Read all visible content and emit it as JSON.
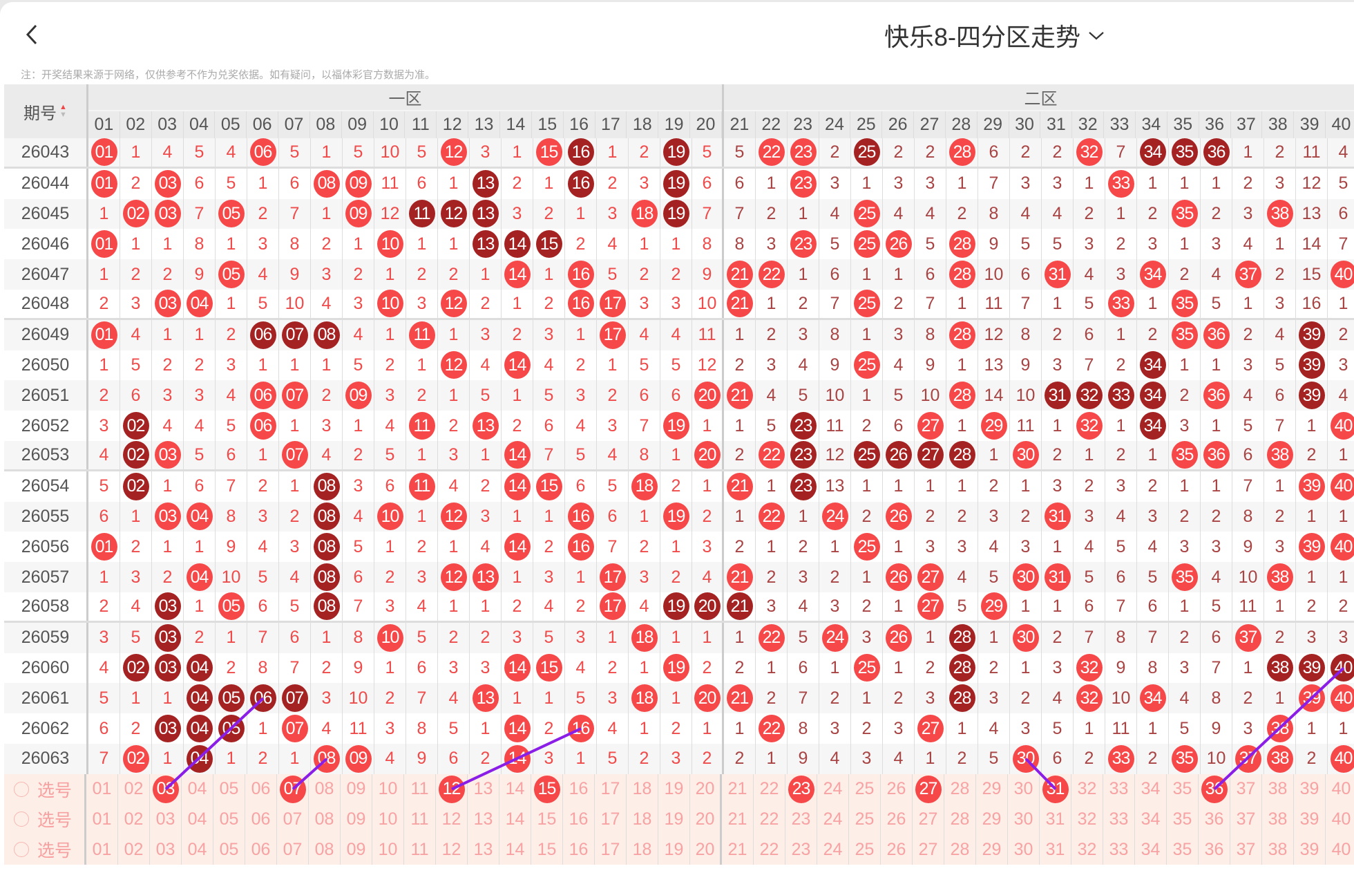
{
  "header": {
    "title": "快乐8-四分区走势",
    "back_icon": "chevron-left-icon",
    "title_dropdown_icon": "chevron-down-icon"
  },
  "note": "注：开奖结果来源于网络，仅供参考不作为兑奖依据。如有疑问，以福体彩官方数据为准。",
  "table": {
    "period_header": "期号",
    "zones": [
      {
        "label": "一区",
        "columns": [
          "01",
          "02",
          "03",
          "04",
          "05",
          "06",
          "07",
          "08",
          "09",
          "10",
          "11",
          "12",
          "13",
          "14",
          "15",
          "16",
          "17",
          "18",
          "19",
          "20"
        ]
      },
      {
        "label": "二区",
        "columns": [
          "21",
          "22",
          "23",
          "24",
          "25",
          "26",
          "27",
          "28",
          "29",
          "30",
          "31",
          "32",
          "33",
          "34",
          "35",
          "36",
          "37",
          "38",
          "39",
          "40"
        ]
      }
    ],
    "rows": [
      {
        "period": "26043",
        "cells": [
          "01",
          1,
          4,
          5,
          4,
          "06",
          5,
          1,
          5,
          10,
          5,
          "12",
          3,
          1,
          "15",
          "16",
          1,
          2,
          "19",
          5,
          5,
          "22",
          "23",
          2,
          "25",
          2,
          2,
          "28",
          6,
          2,
          2,
          "32",
          7,
          "34",
          "35",
          "36",
          1,
          2,
          11,
          4
        ],
        "dark": [
          16,
          19,
          25,
          34,
          35,
          36
        ]
      },
      {
        "period": "26044",
        "cells": [
          "01",
          2,
          "03",
          6,
          5,
          1,
          6,
          "08",
          "09",
          11,
          6,
          1,
          "13",
          2,
          1,
          "16",
          2,
          3,
          "19",
          6,
          6,
          1,
          "23",
          3,
          1,
          3,
          3,
          1,
          7,
          3,
          3,
          1,
          "33",
          1,
          1,
          1,
          2,
          3,
          12,
          5
        ],
        "dark": [
          13,
          16,
          19
        ]
      },
      {
        "period": "26045",
        "cells": [
          1,
          "02",
          "03",
          7,
          "05",
          2,
          7,
          1,
          "09",
          12,
          "11",
          "12",
          "13",
          3,
          2,
          1,
          3,
          "18",
          "19",
          7,
          7,
          2,
          1,
          4,
          "25",
          4,
          4,
          2,
          8,
          4,
          4,
          2,
          1,
          2,
          "35",
          2,
          3,
          "38",
          13,
          6
        ],
        "dark": [
          11,
          12,
          13,
          19
        ]
      },
      {
        "period": "26046",
        "cells": [
          "01",
          1,
          1,
          8,
          1,
          3,
          8,
          2,
          1,
          "10",
          1,
          1,
          "13",
          "14",
          "15",
          2,
          4,
          1,
          1,
          8,
          8,
          3,
          "23",
          5,
          "25",
          "26",
          5,
          "28",
          9,
          5,
          5,
          3,
          2,
          3,
          1,
          3,
          4,
          1,
          14,
          7
        ],
        "dark": [
          13,
          14,
          15
        ]
      },
      {
        "period": "26047",
        "cells": [
          1,
          2,
          2,
          9,
          "05",
          4,
          9,
          3,
          2,
          1,
          2,
          2,
          1,
          "14",
          1,
          "16",
          5,
          2,
          2,
          9,
          "21",
          "22",
          1,
          6,
          1,
          1,
          6,
          "28",
          10,
          6,
          "31",
          4,
          3,
          "34",
          2,
          4,
          "37",
          2,
          15,
          "40"
        ],
        "dark": []
      },
      {
        "period": "26048",
        "cells": [
          2,
          3,
          "03",
          "04",
          1,
          5,
          10,
          4,
          3,
          "10",
          3,
          "12",
          2,
          1,
          2,
          "16",
          "17",
          3,
          3,
          10,
          "21",
          1,
          2,
          7,
          "25",
          2,
          7,
          1,
          11,
          7,
          1,
          5,
          "33",
          1,
          "35",
          5,
          1,
          3,
          16,
          1
        ],
        "dark": []
      },
      {
        "period": "26049",
        "cells": [
          "01",
          4,
          1,
          1,
          2,
          "06",
          "07",
          "08",
          4,
          1,
          "11",
          1,
          3,
          2,
          3,
          1,
          "17",
          4,
          4,
          11,
          1,
          2,
          3,
          8,
          1,
          3,
          8,
          "28",
          12,
          8,
          2,
          6,
          1,
          2,
          "35",
          "36",
          2,
          4,
          "39",
          2
        ],
        "dark": [
          6,
          7,
          8,
          39
        ]
      },
      {
        "period": "26050",
        "cells": [
          1,
          5,
          2,
          2,
          3,
          1,
          1,
          1,
          5,
          2,
          1,
          "12",
          4,
          "14",
          4,
          2,
          1,
          5,
          5,
          12,
          2,
          3,
          4,
          9,
          "25",
          4,
          9,
          1,
          13,
          9,
          3,
          7,
          2,
          "34",
          1,
          1,
          3,
          5,
          "39",
          3
        ],
        "dark": [
          34,
          39
        ]
      },
      {
        "period": "26051",
        "cells": [
          2,
          6,
          3,
          3,
          4,
          "06",
          "07",
          2,
          "09",
          3,
          2,
          1,
          5,
          1,
          5,
          3,
          2,
          6,
          6,
          "20",
          "21",
          4,
          5,
          10,
          1,
          5,
          10,
          "28",
          14,
          10,
          "31",
          "32",
          "33",
          "34",
          2,
          "36",
          4,
          6,
          "39",
          4
        ],
        "dark": [
          31,
          32,
          33,
          34,
          39
        ]
      },
      {
        "period": "26052",
        "cells": [
          3,
          "02",
          4,
          4,
          5,
          "06",
          1,
          3,
          1,
          4,
          "11",
          2,
          "13",
          2,
          6,
          4,
          3,
          7,
          "19",
          1,
          1,
          5,
          "23",
          11,
          2,
          6,
          "27",
          1,
          "29",
          11,
          1,
          "32",
          1,
          "34",
          3,
          1,
          5,
          7,
          1,
          "40"
        ],
        "dark": [
          2,
          23,
          34
        ]
      },
      {
        "period": "26053",
        "cells": [
          4,
          "02",
          "03",
          5,
          6,
          1,
          "07",
          4,
          2,
          5,
          1,
          3,
          1,
          "14",
          7,
          5,
          4,
          8,
          1,
          "20",
          2,
          "22",
          "23",
          12,
          "25",
          "26",
          "27",
          "28",
          1,
          "30",
          2,
          1,
          2,
          1,
          "35",
          "36",
          6,
          "38",
          2,
          1
        ],
        "dark": [
          2,
          23,
          25,
          26,
          27,
          28
        ]
      },
      {
        "period": "26054",
        "cells": [
          5,
          "02",
          1,
          6,
          7,
          2,
          1,
          "08",
          3,
          6,
          "11",
          4,
          2,
          "14",
          "15",
          6,
          5,
          "18",
          2,
          1,
          "21",
          1,
          "23",
          13,
          1,
          1,
          1,
          1,
          2,
          1,
          3,
          2,
          3,
          2,
          1,
          1,
          7,
          1,
          "39",
          "40"
        ],
        "dark": [
          2,
          8,
          23
        ]
      },
      {
        "period": "26055",
        "cells": [
          6,
          1,
          "03",
          "04",
          8,
          3,
          2,
          "08",
          4,
          "10",
          1,
          "12",
          3,
          1,
          1,
          "16",
          6,
          1,
          "19",
          2,
          1,
          "22",
          1,
          "24",
          2,
          "26",
          2,
          2,
          3,
          2,
          "31",
          3,
          4,
          3,
          2,
          2,
          8,
          2,
          1,
          1
        ],
        "dark": [
          8
        ]
      },
      {
        "period": "26056",
        "cells": [
          "01",
          2,
          1,
          1,
          9,
          4,
          3,
          "08",
          5,
          1,
          2,
          1,
          4,
          "14",
          2,
          "16",
          7,
          2,
          1,
          3,
          2,
          1,
          2,
          1,
          "25",
          1,
          3,
          3,
          4,
          3,
          1,
          4,
          5,
          4,
          3,
          3,
          9,
          3,
          "39",
          "40"
        ],
        "dark": [
          8
        ]
      },
      {
        "period": "26057",
        "cells": [
          1,
          3,
          2,
          "04",
          10,
          5,
          4,
          "08",
          6,
          2,
          3,
          "12",
          "13",
          1,
          3,
          1,
          "17",
          3,
          2,
          4,
          "21",
          2,
          3,
          2,
          1,
          "26",
          "27",
          4,
          5,
          "30",
          "31",
          5,
          6,
          5,
          "35",
          4,
          10,
          "38",
          1,
          1
        ],
        "dark": [
          8
        ]
      },
      {
        "period": "26058",
        "cells": [
          2,
          4,
          "03",
          1,
          "05",
          6,
          5,
          "08",
          7,
          3,
          4,
          1,
          1,
          2,
          4,
          2,
          "17",
          4,
          "19",
          "20",
          "21",
          3,
          4,
          3,
          2,
          1,
          "27",
          5,
          "29",
          1,
          1,
          6,
          7,
          6,
          1,
          5,
          11,
          1,
          2,
          2
        ],
        "dark": [
          3,
          8,
          19,
          20,
          21
        ]
      },
      {
        "period": "26059",
        "cells": [
          3,
          5,
          "03",
          2,
          1,
          7,
          6,
          1,
          8,
          "10",
          5,
          2,
          2,
          3,
          5,
          3,
          1,
          "18",
          1,
          1,
          1,
          "22",
          5,
          "24",
          3,
          "26",
          1,
          "28",
          1,
          "30",
          2,
          7,
          8,
          7,
          2,
          6,
          "37",
          2,
          3,
          3
        ],
        "dark": [
          3,
          28
        ]
      },
      {
        "period": "26060",
        "cells": [
          4,
          "02",
          "03",
          "04",
          2,
          8,
          7,
          2,
          9,
          1,
          6,
          3,
          3,
          "14",
          "15",
          4,
          2,
          1,
          "19",
          2,
          2,
          1,
          6,
          1,
          "25",
          1,
          2,
          "28",
          2,
          1,
          3,
          "32",
          9,
          8,
          3,
          7,
          1,
          "38",
          "39",
          "40"
        ],
        "dark": [
          2,
          3,
          4,
          28,
          38,
          39,
          40
        ]
      },
      {
        "period": "26061",
        "cells": [
          5,
          1,
          1,
          "04",
          "05",
          "06",
          "07",
          3,
          10,
          2,
          7,
          4,
          "13",
          1,
          1,
          5,
          3,
          "18",
          1,
          "20",
          "21",
          2,
          7,
          2,
          1,
          2,
          3,
          "28",
          3,
          2,
          4,
          "32",
          10,
          "34",
          4,
          8,
          2,
          1,
          "39",
          "40"
        ],
        "dark": [
          4,
          5,
          6,
          7,
          28
        ]
      },
      {
        "period": "26062",
        "cells": [
          6,
          2,
          "03",
          "04",
          "05",
          1,
          "07",
          4,
          11,
          3,
          8,
          5,
          1,
          "14",
          2,
          "16",
          4,
          1,
          2,
          1,
          1,
          "22",
          8,
          3,
          2,
          3,
          "27",
          1,
          4,
          3,
          5,
          1,
          11,
          1,
          5,
          9,
          3,
          "38",
          1,
          1
        ],
        "dark": [
          3,
          4,
          5
        ]
      },
      {
        "period": "26063",
        "cells": [
          7,
          "02",
          1,
          "04",
          1,
          2,
          1,
          "08",
          "09",
          4,
          9,
          6,
          2,
          "14",
          3,
          1,
          5,
          2,
          3,
          2,
          2,
          1,
          9,
          4,
          3,
          4,
          1,
          2,
          5,
          "30",
          6,
          2,
          "33",
          2,
          "35",
          10,
          "37",
          "38",
          2,
          "40"
        ],
        "dark": [
          4
        ]
      }
    ],
    "select_rows": [
      {
        "label": "选号",
        "selected": [
          3,
          7,
          12,
          15,
          23,
          27,
          31,
          36
        ]
      },
      {
        "label": "选号",
        "selected": []
      },
      {
        "label": "选号",
        "selected": []
      }
    ],
    "connector_lines": [
      {
        "from": {
          "select_row": 0,
          "number": 3
        },
        "to": {
          "period": "26061",
          "number": 6
        }
      },
      {
        "from": {
          "select_row": 0,
          "number": 7
        },
        "to": {
          "period": "26063",
          "number": 8
        }
      },
      {
        "from": {
          "select_row": 0,
          "number": 12
        },
        "to": {
          "period": "26062",
          "number": 16
        }
      },
      {
        "from": {
          "select_row": 0,
          "number": 31
        },
        "to": {
          "period": "26063",
          "number": 30
        }
      },
      {
        "from": {
          "select_row": 0,
          "number": 36
        },
        "to": {
          "period": "26060",
          "number": 40
        }
      }
    ],
    "separator_after_periods": [
      "26043",
      "26048",
      "26053",
      "26058"
    ]
  },
  "colors": {
    "ball": "#f64848",
    "ball_dark": "#a42222",
    "zone1_text": "#f04b4b",
    "zone2_text": "#a84444",
    "select_text": "#f7a3a3",
    "connector": "#8a1ee6",
    "select_row_bg": "#fdeee8"
  }
}
